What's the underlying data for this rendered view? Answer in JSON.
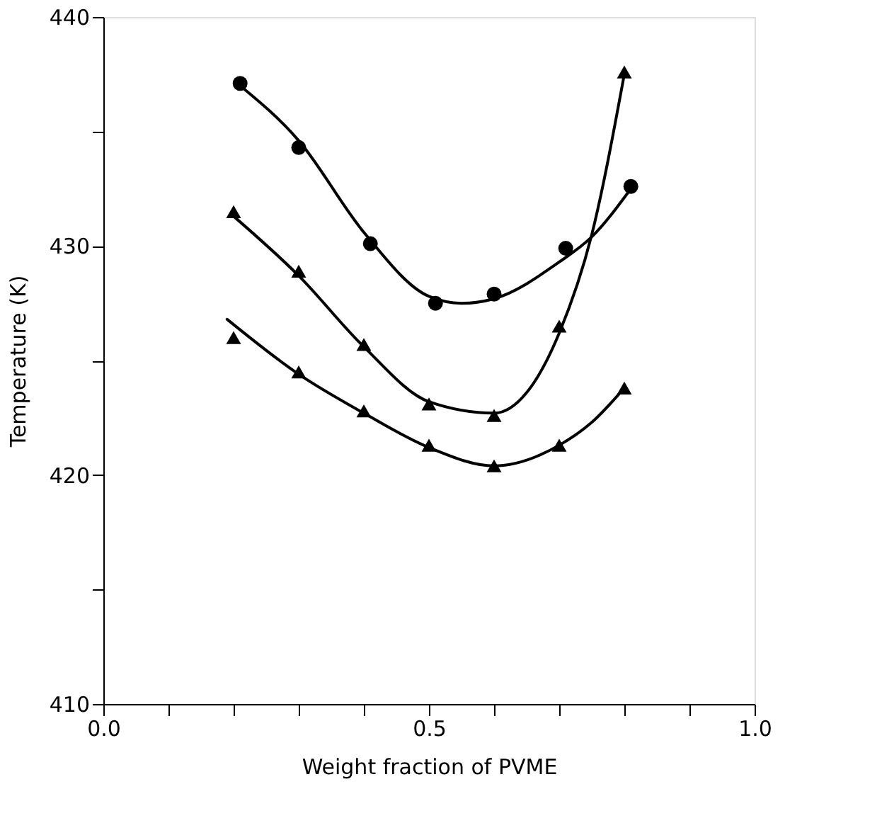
{
  "chart_data": {
    "type": "scatter",
    "xlabel": "Weight fraction of PVME",
    "ylabel": "Temperature (K)",
    "xlim": [
      0.0,
      1.0
    ],
    "ylim": [
      410,
      440
    ],
    "xticks": [
      {
        "value": 0.0,
        "label": "0.0"
      },
      {
        "value": 0.1,
        "label": null
      },
      {
        "value": 0.2,
        "label": null
      },
      {
        "value": 0.3,
        "label": null
      },
      {
        "value": 0.4,
        "label": null
      },
      {
        "value": 0.5,
        "label": "0.5"
      },
      {
        "value": 0.6,
        "label": null
      },
      {
        "value": 0.7,
        "label": null
      },
      {
        "value": 0.8,
        "label": null
      },
      {
        "value": 0.9,
        "label": null
      },
      {
        "value": 1.0,
        "label": "1.0"
      }
    ],
    "yticks": [
      410,
      {
        "value": 415,
        "label": null
      },
      420,
      {
        "value": 425,
        "label": null
      },
      430,
      {
        "value": 435,
        "label": null
      },
      440
    ],
    "grid": false,
    "series": [
      {
        "marker": "circle",
        "color": "#000000",
        "x": [
          0.21,
          0.3,
          0.41,
          0.51,
          0.6,
          0.71,
          0.81
        ],
        "values": [
          437.1,
          434.3,
          430.1,
          427.5,
          427.9,
          429.9,
          432.6
        ]
      },
      {
        "marker": "triangle",
        "color": "#000000",
        "x": [
          0.2,
          0.3,
          0.4,
          0.5,
          0.6,
          0.7,
          0.8
        ],
        "values": [
          431.5,
          428.9,
          425.7,
          423.1,
          422.6,
          426.5,
          437.6
        ]
      },
      {
        "marker": "triangle",
        "color": "#000000",
        "x": [
          0.2,
          0.3,
          0.4,
          0.5,
          0.6,
          0.7,
          0.8
        ],
        "values": [
          426.0,
          424.5,
          422.8,
          421.3,
          420.4,
          421.3,
          423.8
        ]
      },
      {
        "type": "line",
        "line_style": "solid",
        "color": "#000000",
        "x": [
          0.21,
          0.3,
          0.4,
          0.5,
          0.55,
          0.6,
          0.7,
          0.75,
          0.81
        ],
        "values": [
          437.0,
          434.6,
          430.6,
          427.8,
          427.5,
          427.7,
          429.3,
          430.4,
          432.5
        ]
      },
      {
        "type": "line",
        "line_style": "solid",
        "color": "#000000",
        "x": [
          0.2,
          0.3,
          0.4,
          0.5,
          0.6,
          0.65,
          0.7,
          0.75,
          0.8
        ],
        "values": [
          431.3,
          428.7,
          425.6,
          423.2,
          422.7,
          423.6,
          426.2,
          430.5,
          437.5
        ]
      },
      {
        "type": "line",
        "line_style": "solid",
        "color": "#000000",
        "x": [
          0.19,
          0.3,
          0.4,
          0.5,
          0.6,
          0.7,
          0.75,
          0.8
        ],
        "values": [
          426.8,
          424.4,
          422.7,
          421.2,
          420.4,
          421.3,
          422.3,
          423.8
        ]
      }
    ]
  }
}
